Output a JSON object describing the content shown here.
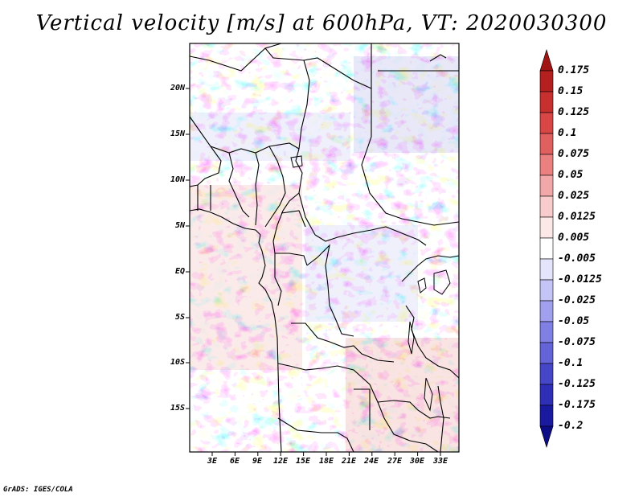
{
  "title": "Vertical velocity [m/s] at 600hPa, VT: 2020030300",
  "credit": "GrADS: IGES/COLA",
  "map": {
    "lat_labels": [
      "20N",
      "15N",
      "10N",
      "5N",
      "EQ",
      "5S",
      "10S",
      "15S"
    ],
    "lon_labels": [
      "3E",
      "6E",
      "9E",
      "12E",
      "15E",
      "18E",
      "21E",
      "24E",
      "27E",
      "30E",
      "33E"
    ],
    "lat_range": [
      -20,
      25
    ],
    "lon_range": [
      0,
      35
    ]
  },
  "colorbar": {
    "levels": [
      "0.175",
      "0.15",
      "0.125",
      "0.1",
      "0.075",
      "0.05",
      "0.025",
      "0.0125",
      "0.005",
      "-0.005",
      "-0.0125",
      "-0.025",
      "-0.05",
      "-0.075",
      "-0.1",
      "-0.125",
      "-0.175",
      "-0.2"
    ],
    "colors": [
      "#a01414",
      "#b42020",
      "#c83030",
      "#d84646",
      "#e06060",
      "#ea8080",
      "#f2a8a8",
      "#f8cccc",
      "#fde8e8",
      "#ffffff",
      "#e4e4fc",
      "#c4c4f6",
      "#a0a0ee",
      "#8080e4",
      "#6464d8",
      "#4646c8",
      "#2e2eb6",
      "#1a1aa0",
      "#0c0c86"
    ]
  },
  "colors": {
    "positive": "#d43c3c",
    "negative": "#4a4ad4",
    "background": "#ffffff"
  }
}
